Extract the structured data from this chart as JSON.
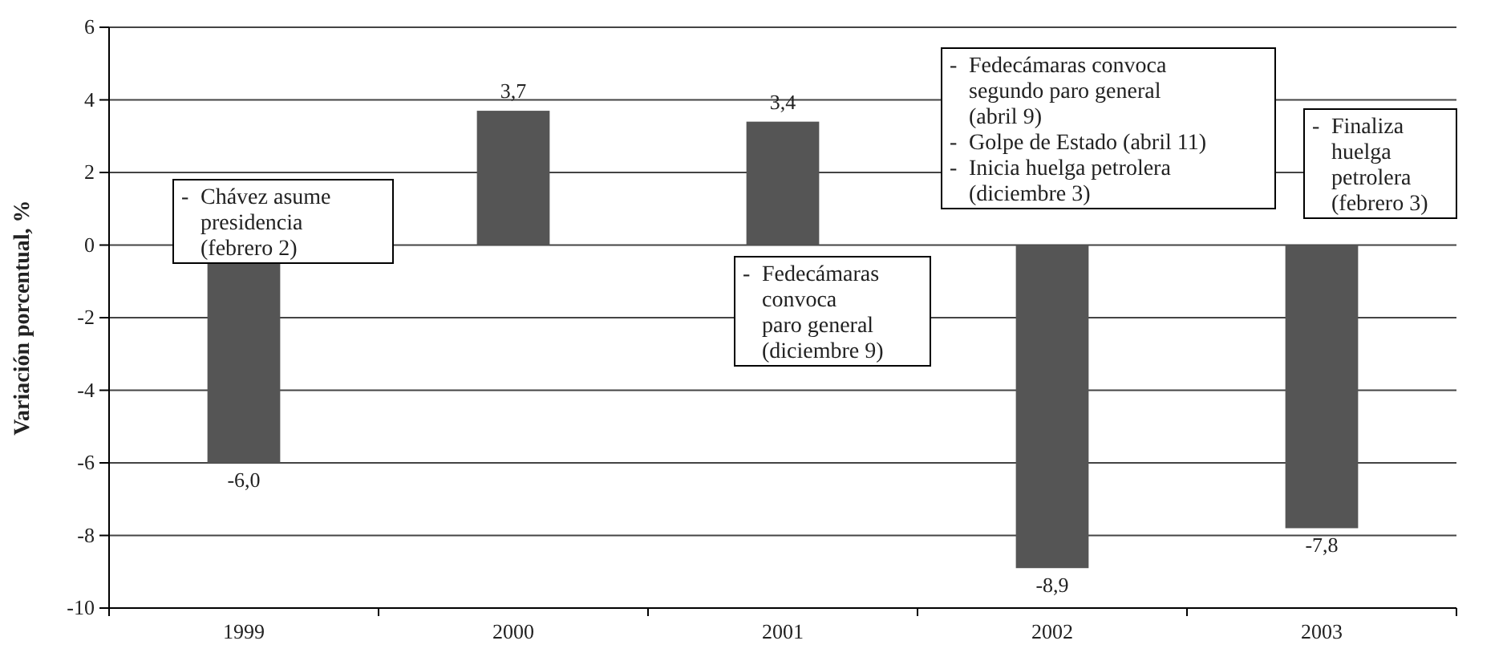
{
  "chart_data": {
    "type": "bar",
    "ylabel": "Variación porcentual, %",
    "categories": [
      "1999",
      "2000",
      "2001",
      "2002",
      "2003"
    ],
    "values": [
      -6.0,
      3.7,
      3.4,
      -8.9,
      -7.8
    ],
    "value_labels": [
      "-6,0",
      "3,7",
      "3,4",
      "-8,9",
      "-7,8"
    ],
    "color": "#555555",
    "ylim": [
      -10,
      6
    ],
    "yticks": [
      -10,
      -8,
      -6,
      -4,
      -2,
      0,
      2,
      4,
      6
    ],
    "grid": "y",
    "annotations": [
      "- Chávez asume\n  presidencia\n  (febrero 2)",
      "- Fedecámaras\n  convoca\n  paro general\n  (diciembre 9)",
      "- Fedecámaras convoca\n  segundo paro general\n  (abril 9)\n- Golpe de Estado (abril 11)\n- Inicia huelga petrolera\n  (diciembre 3)",
      "- Finaliza\n  huelga\n  petrolera\n  (febrero 3)"
    ]
  }
}
